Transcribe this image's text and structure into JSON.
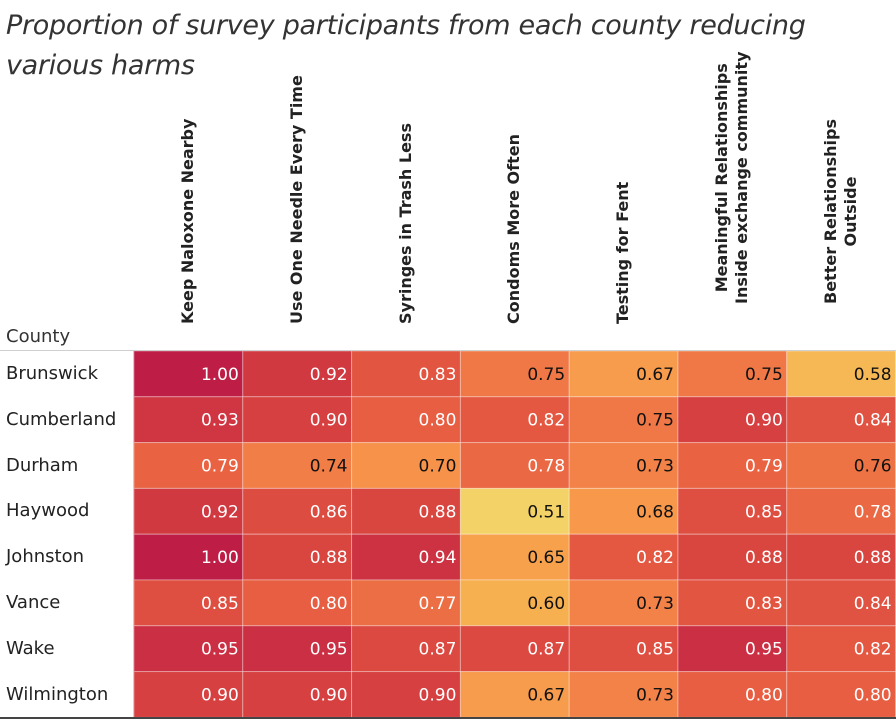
{
  "chart_data": {
    "type": "heatmap",
    "title": "Proportion of survey participants from each county reducing various harms",
    "row_header": "County",
    "columns": [
      "Keep Naloxone Nearby",
      "Use One Needle Every Time",
      "Syringes in Trash Less",
      "Condoms More Often",
      "Testing for Fent",
      "Meaningful Relationships\nInside exchange community",
      "Better Relationships\nOutside"
    ],
    "rows": [
      "Brunswick",
      "Cumberland",
      "Durham",
      "Haywood",
      "Johnston",
      "Vance",
      "Wake",
      "Wilmington"
    ],
    "values": [
      [
        1.0,
        0.92,
        0.83,
        0.75,
        0.67,
        0.75,
        0.58
      ],
      [
        0.93,
        0.9,
        0.8,
        0.82,
        0.75,
        0.9,
        0.84
      ],
      [
        0.79,
        0.74,
        0.7,
        0.78,
        0.73,
        0.79,
        0.76
      ],
      [
        0.92,
        0.86,
        0.88,
        0.51,
        0.68,
        0.85,
        0.78
      ],
      [
        1.0,
        0.88,
        0.94,
        0.65,
        0.82,
        0.88,
        0.88
      ],
      [
        0.85,
        0.8,
        0.77,
        0.6,
        0.73,
        0.83,
        0.84
      ],
      [
        0.95,
        0.95,
        0.87,
        0.87,
        0.85,
        0.95,
        0.82
      ],
      [
        0.9,
        0.9,
        0.9,
        0.67,
        0.73,
        0.8,
        0.8
      ]
    ],
    "color_scale": {
      "low": "#f2d468",
      "mid": "#f79a4c",
      "high": "#be1e45"
    }
  }
}
